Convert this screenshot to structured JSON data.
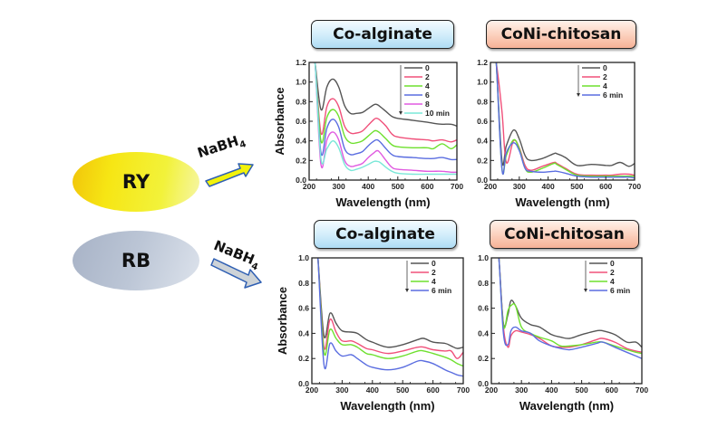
{
  "left": {
    "dyes": [
      {
        "label": "RY",
        "color_start": "#f1c40a",
        "color_end": "#f6f6a8"
      },
      {
        "label": "RB",
        "color_start": "#a7b2c6",
        "color_end": "#dde3ec"
      }
    ],
    "reagent_main": "NaBH",
    "reagent_sub": "4",
    "arrow_colors": {
      "ry": "#f2f20a",
      "rb": "#cdd3d8",
      "outline": "#2f5fb3"
    }
  },
  "titles": {
    "co_alginate": "Co-alginate",
    "coni_chitosan": "CoNi-chitosan"
  },
  "chart_data": [
    {
      "id": "ry-co-alginate",
      "type": "line",
      "title": "Co-alginate",
      "dye": "RY",
      "xlabel": "Wavelength (nm)",
      "ylabel": "Absorbance",
      "xlim": [
        200,
        700
      ],
      "ylim": [
        0.0,
        1.2
      ],
      "xticks": [
        200,
        300,
        400,
        500,
        600,
        700
      ],
      "yticks": [
        "0.0",
        "0.2",
        "0.4",
        "0.6",
        "0.8",
        "1.0",
        "1.2"
      ],
      "legend_position": "top-right",
      "x": [
        220,
        240,
        260,
        280,
        300,
        320,
        340,
        360,
        380,
        400,
        420,
        430,
        440,
        460,
        480,
        500,
        550,
        600,
        620,
        650,
        680,
        700
      ],
      "series": [
        {
          "name": "0",
          "color": "#555555",
          "values": [
            1.2,
            0.72,
            0.95,
            1.03,
            0.95,
            0.76,
            0.68,
            0.68,
            0.69,
            0.73,
            0.77,
            0.77,
            0.75,
            0.7,
            0.65,
            0.63,
            0.61,
            0.59,
            0.58,
            0.57,
            0.57,
            0.55
          ]
        },
        {
          "name": "2",
          "color": "#f0507a",
          "values": [
            1.2,
            0.48,
            0.75,
            0.83,
            0.75,
            0.55,
            0.48,
            0.48,
            0.5,
            0.56,
            0.62,
            0.63,
            0.61,
            0.55,
            0.47,
            0.44,
            0.42,
            0.41,
            0.4,
            0.41,
            0.39,
            0.41
          ]
        },
        {
          "name": "4",
          "color": "#6ee02e",
          "values": [
            1.2,
            0.4,
            0.64,
            0.72,
            0.65,
            0.45,
            0.38,
            0.38,
            0.4,
            0.45,
            0.5,
            0.5,
            0.48,
            0.42,
            0.36,
            0.34,
            0.33,
            0.33,
            0.32,
            0.37,
            0.32,
            0.36
          ]
        },
        {
          "name": "6",
          "color": "#5a6de0",
          "values": [
            1.2,
            0.28,
            0.53,
            0.62,
            0.54,
            0.32,
            0.26,
            0.27,
            0.29,
            0.35,
            0.4,
            0.41,
            0.39,
            0.32,
            0.26,
            0.24,
            0.23,
            0.22,
            0.22,
            0.23,
            0.21,
            0.21
          ]
        },
        {
          "name": "8",
          "color": "#e05ae0",
          "values": [
            1.2,
            0.16,
            0.41,
            0.49,
            0.41,
            0.2,
            0.14,
            0.15,
            0.17,
            0.23,
            0.28,
            0.3,
            0.28,
            0.2,
            0.13,
            0.11,
            0.1,
            0.09,
            0.09,
            0.09,
            0.08,
            0.08
          ]
        },
        {
          "name": "10 min",
          "color": "#7ae8d8",
          "values": [
            1.2,
            0.22,
            0.32,
            0.4,
            0.33,
            0.16,
            0.1,
            0.11,
            0.13,
            0.16,
            0.19,
            0.19,
            0.18,
            0.13,
            0.09,
            0.07,
            0.06,
            0.06,
            0.06,
            0.06,
            0.06,
            0.06
          ]
        }
      ]
    },
    {
      "id": "ry-coni-chitosan",
      "type": "line",
      "title": "CoNi-chitosan",
      "dye": "RY",
      "xlabel": "Wavelength (nm)",
      "ylabel": "",
      "xlim": [
        200,
        700
      ],
      "ylim": [
        0.0,
        1.2
      ],
      "xticks": [
        200,
        300,
        400,
        500,
        600,
        700
      ],
      "yticks": [
        "0.0",
        "0.2",
        "0.4",
        "0.6",
        "0.8",
        "1.0",
        "1.2"
      ],
      "legend_position": "top-right",
      "x": [
        220,
        240,
        255,
        280,
        300,
        320,
        340,
        380,
        420,
        430,
        460,
        500,
        550,
        600,
        620,
        650,
        680,
        700
      ],
      "series": [
        {
          "name": "0",
          "color": "#555555",
          "values": [
            1.2,
            0.2,
            0.35,
            0.51,
            0.42,
            0.25,
            0.2,
            0.22,
            0.27,
            0.27,
            0.23,
            0.15,
            0.16,
            0.15,
            0.15,
            0.18,
            0.14,
            0.17
          ]
        },
        {
          "name": "2",
          "color": "#f0507a",
          "values": [
            1.2,
            0.7,
            0.18,
            0.4,
            0.33,
            0.15,
            0.1,
            0.14,
            0.18,
            0.17,
            0.12,
            0.06,
            0.05,
            0.05,
            0.05,
            0.06,
            0.06,
            0.05
          ]
        },
        {
          "name": "4",
          "color": "#6ee02e",
          "values": [
            1.2,
            0.12,
            0.25,
            0.41,
            0.32,
            0.12,
            0.08,
            0.12,
            0.17,
            0.16,
            0.11,
            0.05,
            0.04,
            0.04,
            0.04,
            0.04,
            0.04,
            0.04
          ]
        },
        {
          "name": "6 min",
          "color": "#5a6de0",
          "values": [
            1.2,
            0.11,
            0.28,
            0.38,
            0.3,
            0.12,
            0.09,
            0.08,
            0.09,
            0.09,
            0.07,
            0.04,
            0.03,
            0.03,
            0.03,
            0.03,
            0.03,
            0.02
          ]
        }
      ]
    },
    {
      "id": "rb-co-alginate",
      "type": "line",
      "title": "Co-alginate",
      "dye": "RB",
      "xlabel": "Wavelength (nm)",
      "ylabel": "Absorbance",
      "xlim": [
        200,
        700
      ],
      "ylim": [
        0.0,
        1.0
      ],
      "xticks": [
        200,
        300,
        400,
        500,
        600,
        700
      ],
      "yticks": [
        "0.0",
        "0.2",
        "0.4",
        "0.6",
        "0.8",
        "1.0"
      ],
      "legend_position": "top-right",
      "x": [
        220,
        240,
        260,
        280,
        300,
        330,
        350,
        380,
        400,
        450,
        500,
        550,
        570,
        600,
        640,
        660,
        680,
        700
      ],
      "series": [
        {
          "name": "0",
          "color": "#555555",
          "values": [
            1.0,
            0.38,
            0.56,
            0.48,
            0.42,
            0.41,
            0.4,
            0.35,
            0.33,
            0.29,
            0.31,
            0.35,
            0.36,
            0.33,
            0.32,
            0.3,
            0.28,
            0.29
          ]
        },
        {
          "name": "2",
          "color": "#f0507a",
          "values": [
            1.0,
            0.29,
            0.51,
            0.41,
            0.34,
            0.34,
            0.32,
            0.28,
            0.27,
            0.24,
            0.26,
            0.29,
            0.29,
            0.27,
            0.26,
            0.26,
            0.2,
            0.25
          ]
        },
        {
          "name": "4",
          "color": "#6ee02e",
          "values": [
            1.0,
            0.25,
            0.43,
            0.36,
            0.31,
            0.31,
            0.29,
            0.24,
            0.23,
            0.2,
            0.22,
            0.26,
            0.26,
            0.24,
            0.21,
            0.19,
            0.16,
            0.14
          ]
        },
        {
          "name": "6 min",
          "color": "#5a6de0",
          "values": [
            1.0,
            0.15,
            0.32,
            0.26,
            0.22,
            0.23,
            0.2,
            0.15,
            0.13,
            0.11,
            0.13,
            0.18,
            0.18,
            0.16,
            0.11,
            0.09,
            0.07,
            0.06
          ]
        }
      ]
    },
    {
      "id": "rb-coni-chitosan",
      "type": "line",
      "title": "CoNi-chitosan",
      "dye": "RB",
      "xlabel": "Wavelength (nm)",
      "ylabel": "",
      "xlim": [
        200,
        700
      ],
      "ylim": [
        0.0,
        1.0
      ],
      "xticks": [
        200,
        300,
        400,
        500,
        600,
        700
      ],
      "yticks": [
        "0.0",
        "0.2",
        "0.4",
        "0.6",
        "0.8",
        "1.0"
      ],
      "legend_position": "top-right",
      "x": [
        225,
        240,
        255,
        265,
        280,
        300,
        330,
        360,
        400,
        430,
        460,
        500,
        550,
        570,
        610,
        650,
        680,
        700
      ],
      "series": [
        {
          "name": "0",
          "color": "#555555",
          "values": [
            1.0,
            0.48,
            0.55,
            0.66,
            0.62,
            0.52,
            0.47,
            0.45,
            0.39,
            0.37,
            0.36,
            0.39,
            0.42,
            0.42,
            0.39,
            0.33,
            0.33,
            0.29
          ]
        },
        {
          "name": "2",
          "color": "#f0507a",
          "values": [
            1.0,
            0.45,
            0.29,
            0.38,
            0.42,
            0.41,
            0.39,
            0.36,
            0.3,
            0.29,
            0.29,
            0.31,
            0.35,
            0.36,
            0.33,
            0.28,
            0.26,
            0.25
          ]
        },
        {
          "name": "4",
          "color": "#6ee02e",
          "values": [
            1.0,
            0.46,
            0.58,
            0.62,
            0.62,
            0.45,
            0.4,
            0.37,
            0.34,
            0.3,
            0.3,
            0.31,
            0.33,
            0.33,
            0.3,
            0.27,
            0.25,
            0.24
          ]
        },
        {
          "name": "6 min",
          "color": "#5a6de0",
          "values": [
            1.0,
            0.4,
            0.31,
            0.42,
            0.45,
            0.42,
            0.4,
            0.34,
            0.3,
            0.28,
            0.27,
            0.29,
            0.32,
            0.33,
            0.29,
            0.25,
            0.22,
            0.2
          ]
        }
      ]
    }
  ]
}
